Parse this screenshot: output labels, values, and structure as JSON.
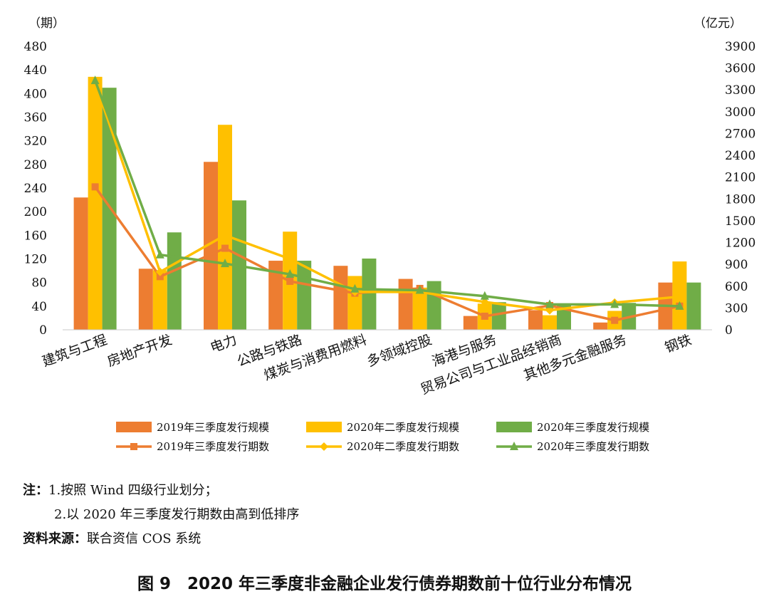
{
  "chart_data": {
    "type": "bar",
    "left_axis_unit": "（期）",
    "right_axis_unit": "（亿元）",
    "left_ticks": [
      0,
      40,
      80,
      120,
      160,
      200,
      240,
      280,
      320,
      360,
      400,
      440,
      480
    ],
    "right_ticks": [
      0,
      300,
      600,
      900,
      1200,
      1500,
      1800,
      2100,
      2400,
      2700,
      3000,
      3300,
      3600,
      3900
    ],
    "ylim_left": [
      0,
      480
    ],
    "ylim_right": [
      0,
      3900
    ],
    "categories": [
      "建筑与工程",
      "房地产开发",
      "电力",
      "公路与铁路",
      "煤炭与消费用燃料",
      "多领域控股",
      "海港与服务",
      "贸易公司与工业品经销商",
      "其他多元金融服务",
      "钢铁"
    ],
    "bar_series": [
      {
        "name": "2019年三季度发行规模",
        "color": "#ED7D31",
        "axis": "right",
        "values": [
          1820,
          840,
          2310,
          950,
          880,
          700,
          190,
          270,
          100,
          650
        ]
      },
      {
        "name": "2020年二季度发行规模",
        "color": "#FFC000",
        "axis": "right",
        "values": [
          3480,
          820,
          2820,
          1350,
          740,
          580,
          360,
          200,
          260,
          940
        ]
      },
      {
        "name": "2020年三季度发行规模",
        "color": "#70AD47",
        "axis": "right",
        "values": [
          3330,
          1340,
          1780,
          950,
          980,
          670,
          380,
          360,
          370,
          650
        ]
      }
    ],
    "line_series": [
      {
        "name": "2019年三季度发行期数",
        "color": "#ED7D31",
        "marker": "square",
        "axis": "left",
        "values": [
          242,
          90,
          138,
          82,
          62,
          70,
          23,
          41,
          16,
          40
        ]
      },
      {
        "name": "2020年二季度发行期数",
        "color": "#FFC000",
        "marker": "diamond",
        "axis": "left",
        "values": [
          419,
          98,
          160,
          120,
          64,
          64,
          47,
          33,
          46,
          56
        ]
      },
      {
        "name": "2020年三季度发行期数",
        "color": "#70AD47",
        "marker": "triangle",
        "axis": "left",
        "values": [
          422,
          127,
          112,
          94,
          69,
          67,
          57,
          43,
          43,
          40
        ]
      }
    ],
    "legend_position": "bottom",
    "grid": false
  },
  "notes": {
    "line1_label": "注：",
    "line1_text": "1.按照 Wind 四级行业划分；",
    "line2_text": "2.以 2020 年三季度发行期数由高到低排序",
    "source_label": "资料来源：",
    "source_text": "联合资信 COS 系统"
  },
  "caption": "图 9　2020 年三季度非金融企业发行债券期数前十位行业分布情况"
}
